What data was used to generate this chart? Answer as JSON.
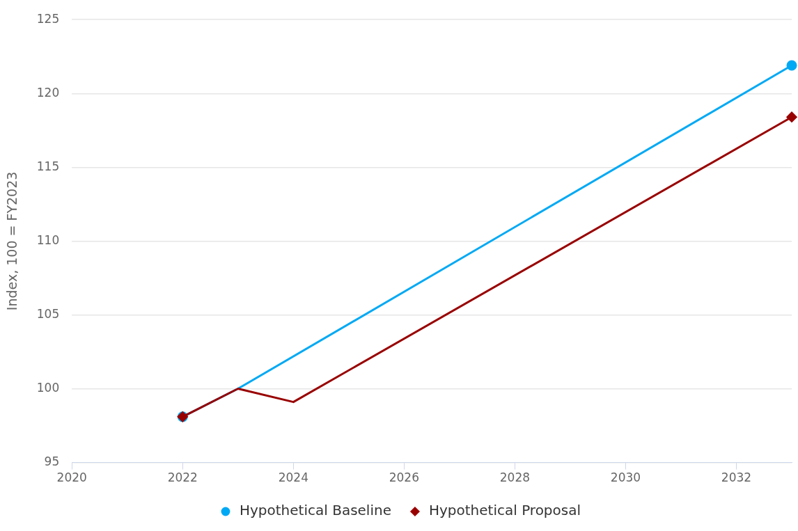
{
  "chart_data": {
    "type": "line",
    "ylabel": "Index, 100 = FY2023",
    "xlim": [
      2020,
      2033
    ],
    "xticks": [
      2020,
      2022,
      2024,
      2026,
      2028,
      2030,
      2032
    ],
    "ylim": [
      95,
      125
    ],
    "yticks": [
      95,
      100,
      105,
      110,
      115,
      120,
      125
    ],
    "grid": "y",
    "legend": "bottom",
    "series": [
      {
        "name": "Hypothetical Baseline",
        "color": "#00a9f4",
        "marker": "circle",
        "x": [
          2022,
          2023,
          2033
        ],
        "values": [
          98.1,
          100,
          121.9
        ]
      },
      {
        "name": "Hypothetical Proposal",
        "color": "#990000",
        "marker": "diamond",
        "x": [
          2022,
          2023,
          2024,
          2033
        ],
        "values": [
          98.1,
          100,
          99.1,
          118.4
        ]
      }
    ]
  }
}
